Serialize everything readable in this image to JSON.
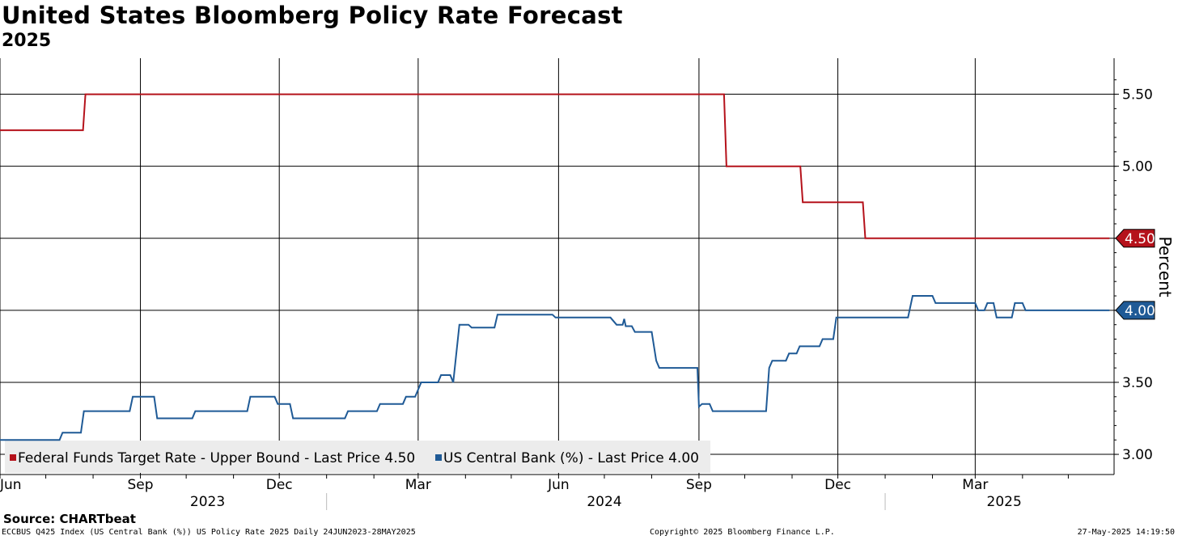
{
  "header": {
    "title": "United States Bloomberg Policy Rate Forecast",
    "subtitle": "2025"
  },
  "footer": {
    "source": "Source: CHARTbeat",
    "index_info": "ECCBUS Q425 Index (US Central Bank (%)) US Policy Rate 2025  Daily 24JUN2023-28MAY2025",
    "copyright": "Copyright© 2025 Bloomberg Finance L.P.",
    "timestamp": "27-May-2025 14:19:50"
  },
  "chart_data": {
    "type": "line",
    "title": "United States Bloomberg Policy Rate Forecast",
    "subtitle": "2025",
    "ylabel": "Percent",
    "xlabel": "",
    "ylim": [
      2.86,
      5.75
    ],
    "xlim": [
      "2023-06-01",
      "2025-05-31"
    ],
    "yticks": [
      3.0,
      3.5,
      4.0,
      4.5,
      5.0,
      5.5
    ],
    "ytick_labels": [
      "3.00",
      "3.50",
      "4.00",
      "4.50",
      "5.00",
      "5.50"
    ],
    "xticks": [
      {
        "date": "2023-06-01",
        "label": "Jun"
      },
      {
        "date": "2023-09-01",
        "label": "Sep"
      },
      {
        "date": "2023-12-01",
        "label": "Dec"
      },
      {
        "date": "2024-03-01",
        "label": "Mar"
      },
      {
        "date": "2024-06-01",
        "label": "Jun"
      },
      {
        "date": "2024-09-01",
        "label": "Sep"
      },
      {
        "date": "2024-12-01",
        "label": "Dec"
      },
      {
        "date": "2025-03-01",
        "label": "Mar"
      }
    ],
    "year_labels": [
      {
        "label": "2023",
        "center": "2023-10-15"
      },
      {
        "label": "2024",
        "center": "2024-07-01"
      },
      {
        "label": "2025",
        "center": "2025-03-20"
      }
    ],
    "year_separators": [
      "2024-01-01",
      "2025-01-01"
    ],
    "grid": true,
    "legend_position": "bottom-left",
    "series": [
      {
        "name": "Federal Funds Target Rate - Upper Bound",
        "legend": "Federal Funds Target Rate - Upper Bound - Last Price 4.50",
        "color": "#b5121b",
        "last_value": 4.5,
        "last_label": "4.50",
        "step": true,
        "points": [
          [
            "2023-06-01",
            5.25
          ],
          [
            "2023-07-27",
            5.5
          ],
          [
            "2024-09-19",
            5.0
          ],
          [
            "2024-11-08",
            4.75
          ],
          [
            "2024-12-19",
            4.5
          ],
          [
            "2025-05-28",
            4.5
          ]
        ]
      },
      {
        "name": "US Central Bank (%)",
        "legend": "US Central Bank (%) - Last Price 4.00",
        "color": "#1f5a96",
        "last_value": 4.0,
        "last_label": "4.00",
        "step": true,
        "points": [
          [
            "2023-06-01",
            3.1
          ],
          [
            "2023-07-10",
            3.1
          ],
          [
            "2023-07-12",
            3.15
          ],
          [
            "2023-07-24",
            3.15
          ],
          [
            "2023-07-26",
            3.3
          ],
          [
            "2023-08-25",
            3.3
          ],
          [
            "2023-08-27",
            3.4
          ],
          [
            "2023-09-10",
            3.4
          ],
          [
            "2023-09-12",
            3.25
          ],
          [
            "2023-10-05",
            3.25
          ],
          [
            "2023-10-07",
            3.3
          ],
          [
            "2023-11-10",
            3.3
          ],
          [
            "2023-11-12",
            3.4
          ],
          [
            "2023-11-28",
            3.4
          ],
          [
            "2023-11-30",
            3.35
          ],
          [
            "2023-12-08",
            3.35
          ],
          [
            "2023-12-10",
            3.25
          ],
          [
            "2024-01-13",
            3.25
          ],
          [
            "2024-01-15",
            3.3
          ],
          [
            "2024-02-03",
            3.3
          ],
          [
            "2024-02-05",
            3.35
          ],
          [
            "2024-02-20",
            3.35
          ],
          [
            "2024-02-22",
            3.4
          ],
          [
            "2024-02-28",
            3.4
          ],
          [
            "2024-03-03",
            3.5
          ],
          [
            "2024-03-14",
            3.5
          ],
          [
            "2024-03-16",
            3.55
          ],
          [
            "2024-03-22",
            3.55
          ],
          [
            "2024-03-24",
            3.5
          ],
          [
            "2024-03-28",
            3.9
          ],
          [
            "2024-04-03",
            3.9
          ],
          [
            "2024-04-05",
            3.88
          ],
          [
            "2024-04-20",
            3.88
          ],
          [
            "2024-04-22",
            3.97
          ],
          [
            "2024-05-28",
            3.97
          ],
          [
            "2024-05-30",
            3.95
          ],
          [
            "2024-07-05",
            3.95
          ],
          [
            "2024-07-09",
            3.9
          ],
          [
            "2024-07-13",
            3.9
          ],
          [
            "2024-07-14",
            3.94
          ],
          [
            "2024-07-15",
            3.89
          ],
          [
            "2024-07-19",
            3.89
          ],
          [
            "2024-07-21",
            3.85
          ],
          [
            "2024-08-01",
            3.85
          ],
          [
            "2024-08-04",
            3.65
          ],
          [
            "2024-08-06",
            3.6
          ],
          [
            "2024-08-31",
            3.6
          ],
          [
            "2024-09-01",
            3.33
          ],
          [
            "2024-09-03",
            3.35
          ],
          [
            "2024-09-08",
            3.35
          ],
          [
            "2024-09-10",
            3.3
          ],
          [
            "2024-10-15",
            3.3
          ],
          [
            "2024-10-17",
            3.6
          ],
          [
            "2024-10-19",
            3.65
          ],
          [
            "2024-10-28",
            3.65
          ],
          [
            "2024-10-30",
            3.7
          ],
          [
            "2024-11-04",
            3.7
          ],
          [
            "2024-11-06",
            3.75
          ],
          [
            "2024-11-19",
            3.75
          ],
          [
            "2024-11-21",
            3.8
          ],
          [
            "2024-11-28",
            3.8
          ],
          [
            "2024-11-30",
            3.95
          ],
          [
            "2025-01-16",
            3.95
          ],
          [
            "2025-01-19",
            4.1
          ],
          [
            "2025-02-01",
            4.1
          ],
          [
            "2025-02-03",
            4.05
          ],
          [
            "2025-03-01",
            4.05
          ],
          [
            "2025-03-03",
            4.0
          ],
          [
            "2025-03-07",
            4.0
          ],
          [
            "2025-03-09",
            4.05
          ],
          [
            "2025-03-13",
            4.05
          ],
          [
            "2025-03-15",
            3.95
          ],
          [
            "2025-03-25",
            3.95
          ],
          [
            "2025-03-27",
            4.05
          ],
          [
            "2025-04-01",
            4.05
          ],
          [
            "2025-04-03",
            4.0
          ],
          [
            "2025-05-28",
            4.0
          ]
        ]
      }
    ]
  }
}
